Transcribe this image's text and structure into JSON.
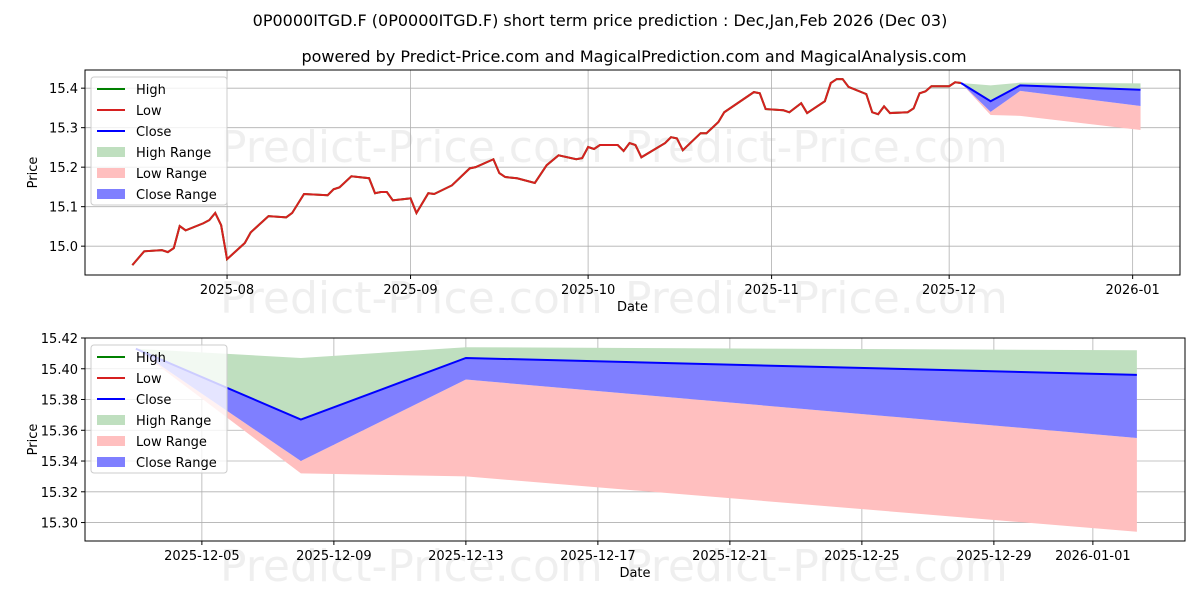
{
  "title": "0P0000ITGD.F (0P0000ITGD.F) short term price prediction : Dec,Jan,Feb 2026 (Dec 03)",
  "subtitle": "powered by Predict-Price.com and MagicalPrediction.com and MagicalAnalysis.com",
  "watermark": "Predict-Price.com",
  "colors": {
    "high": "#008000",
    "low": "#d62020",
    "close": "#0000ff",
    "high_range": "#bfdfbf",
    "low_range": "#ffbfbf",
    "close_range": "#7f7fff"
  },
  "chart_data": [
    {
      "type": "line",
      "xlabel": "Date",
      "ylabel": "Price",
      "xlim": [
        "2025-07-08",
        "2026-01-09"
      ],
      "ylim": [
        14.927,
        15.446
      ],
      "grid": true,
      "legend_placement": "top-left",
      "legend": [
        "High",
        "Low",
        "Close",
        "High Range",
        "Low Range",
        "Close Range"
      ],
      "xticks": [
        {
          "date": "2025-08-01",
          "label": "2025-08"
        },
        {
          "date": "2025-09-01",
          "label": "2025-09"
        },
        {
          "date": "2025-10-01",
          "label": "2025-10"
        },
        {
          "date": "2025-11-01",
          "label": "2025-11"
        },
        {
          "date": "2025-12-01",
          "label": "2025-12"
        },
        {
          "date": "2026-01-01",
          "label": "2026-01"
        }
      ],
      "yticks": [
        {
          "v": 15.0,
          "label": "15.0"
        },
        {
          "v": 15.1,
          "label": "15.1"
        },
        {
          "v": 15.2,
          "label": "15.2"
        },
        {
          "v": 15.3,
          "label": "15.3"
        },
        {
          "v": 15.4,
          "label": "15.4"
        }
      ],
      "history": [
        [
          "2025-07-16",
          14.952
        ],
        [
          "2025-07-18",
          14.987
        ],
        [
          "2025-07-21",
          14.99
        ],
        [
          "2025-07-22",
          14.985
        ],
        [
          "2025-07-23",
          14.995
        ],
        [
          "2025-07-24",
          15.051
        ],
        [
          "2025-07-25",
          15.04
        ],
        [
          "2025-07-28",
          15.058
        ],
        [
          "2025-07-29",
          15.066
        ],
        [
          "2025-07-30",
          15.084
        ],
        [
          "2025-07-31",
          15.053
        ],
        [
          "2025-08-01",
          14.967
        ],
        [
          "2025-08-04",
          15.008
        ],
        [
          "2025-08-05",
          15.035
        ],
        [
          "2025-08-08",
          15.076
        ],
        [
          "2025-08-11",
          15.073
        ],
        [
          "2025-08-12",
          15.084
        ],
        [
          "2025-08-14",
          15.132
        ],
        [
          "2025-08-18",
          15.129
        ],
        [
          "2025-08-19",
          15.144
        ],
        [
          "2025-08-20",
          15.149
        ],
        [
          "2025-08-22",
          15.177
        ],
        [
          "2025-08-25",
          15.172
        ],
        [
          "2025-08-26",
          15.134
        ],
        [
          "2025-08-27",
          15.137
        ],
        [
          "2025-08-28",
          15.137
        ],
        [
          "2025-08-29",
          15.116
        ],
        [
          "2025-09-01",
          15.121
        ],
        [
          "2025-09-02",
          15.084
        ],
        [
          "2025-09-04",
          15.134
        ],
        [
          "2025-09-05",
          15.132
        ],
        [
          "2025-09-08",
          15.154
        ],
        [
          "2025-09-11",
          15.197
        ],
        [
          "2025-09-12",
          15.2
        ],
        [
          "2025-09-15",
          15.22
        ],
        [
          "2025-09-16",
          15.185
        ],
        [
          "2025-09-17",
          15.175
        ],
        [
          "2025-09-19",
          15.172
        ],
        [
          "2025-09-22",
          15.16
        ],
        [
          "2025-09-24",
          15.205
        ],
        [
          "2025-09-26",
          15.23
        ],
        [
          "2025-09-29",
          15.22
        ],
        [
          "2025-09-30",
          15.223
        ],
        [
          "2025-10-01",
          15.251
        ],
        [
          "2025-10-02",
          15.246
        ],
        [
          "2025-10-03",
          15.256
        ],
        [
          "2025-10-06",
          15.256
        ],
        [
          "2025-10-07",
          15.241
        ],
        [
          "2025-10-08",
          15.261
        ],
        [
          "2025-10-09",
          15.256
        ],
        [
          "2025-10-10",
          15.225
        ],
        [
          "2025-10-14",
          15.261
        ],
        [
          "2025-10-15",
          15.276
        ],
        [
          "2025-10-16",
          15.273
        ],
        [
          "2025-10-17",
          15.243
        ],
        [
          "2025-10-20",
          15.286
        ],
        [
          "2025-10-21",
          15.286
        ],
        [
          "2025-10-23",
          15.314
        ],
        [
          "2025-10-24",
          15.339
        ],
        [
          "2025-10-29",
          15.39
        ],
        [
          "2025-10-30",
          15.387
        ],
        [
          "2025-10-31",
          15.347
        ],
        [
          "2025-11-03",
          15.344
        ],
        [
          "2025-11-04",
          15.339
        ],
        [
          "2025-11-06",
          15.362
        ],
        [
          "2025-11-07",
          15.337
        ],
        [
          "2025-11-10",
          15.367
        ],
        [
          "2025-11-11",
          15.413
        ],
        [
          "2025-11-12",
          15.423
        ],
        [
          "2025-11-13",
          15.423
        ],
        [
          "2025-11-14",
          15.403
        ],
        [
          "2025-11-17",
          15.385
        ],
        [
          "2025-11-18",
          15.339
        ],
        [
          "2025-11-19",
          15.334
        ],
        [
          "2025-11-20",
          15.354
        ],
        [
          "2025-11-21",
          15.337
        ],
        [
          "2025-11-24",
          15.339
        ],
        [
          "2025-11-25",
          15.349
        ],
        [
          "2025-11-26",
          15.387
        ],
        [
          "2025-11-27",
          15.392
        ],
        [
          "2025-11-28",
          15.405
        ],
        [
          "2025-12-01",
          15.405
        ],
        [
          "2025-12-02",
          15.415
        ],
        [
          "2025-12-03",
          15.413
        ]
      ]
    },
    {
      "type": "area",
      "xlabel": "Date",
      "ylabel": "Price",
      "xlim": [
        "2025-12-01T11:00",
        "2026-01-03T19:00"
      ],
      "ylim": [
        15.288,
        15.42
      ],
      "grid": true,
      "legend_placement": "top-left",
      "legend": [
        "High",
        "Low",
        "Close",
        "High Range",
        "Low Range",
        "Close Range"
      ],
      "xticks": [
        {
          "date": "2025-12-05",
          "label": "2025-12-05"
        },
        {
          "date": "2025-12-09",
          "label": "2025-12-09"
        },
        {
          "date": "2025-12-13",
          "label": "2025-12-13"
        },
        {
          "date": "2025-12-17",
          "label": "2025-12-17"
        },
        {
          "date": "2025-12-21",
          "label": "2025-12-21"
        },
        {
          "date": "2025-12-25",
          "label": "2025-12-25"
        },
        {
          "date": "2025-12-29",
          "label": "2025-12-29"
        },
        {
          "date": "2026-01-01",
          "label": "2026-01-01"
        }
      ],
      "yticks": [
        {
          "v": 15.3,
          "label": "15.30"
        },
        {
          "v": 15.32,
          "label": "15.32"
        },
        {
          "v": 15.34,
          "label": "15.34"
        },
        {
          "v": 15.36,
          "label": "15.36"
        },
        {
          "v": 15.38,
          "label": "15.38"
        },
        {
          "v": 15.4,
          "label": "15.40"
        },
        {
          "v": 15.42,
          "label": "15.42"
        }
      ]
    }
  ],
  "forecast": {
    "dates": [
      "2025-12-03",
      "2025-12-08",
      "2025-12-13",
      "2026-01-02T08:00"
    ],
    "high_upper": [
      15.413,
      15.407,
      15.414,
      15.412
    ],
    "close": [
      15.413,
      15.367,
      15.407,
      15.396
    ],
    "close_lower": [
      15.413,
      15.34,
      15.393,
      15.355
    ],
    "low_lower": [
      15.413,
      15.332,
      15.33,
      15.294
    ]
  }
}
